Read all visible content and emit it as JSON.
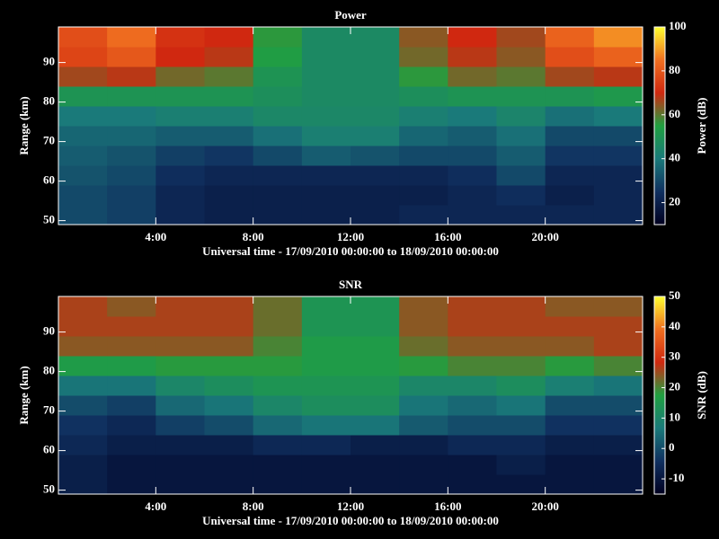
{
  "chart_data": [
    {
      "type": "heatmap",
      "title": "Power",
      "y_label": "Range (km)",
      "x_label": "Universal time - 17/09/2010 00:00:00 to 18/09/2010 00:00:00",
      "colorbar_label": "Power (dB)",
      "x_bins": [
        0,
        2,
        4,
        6,
        8,
        10,
        12,
        14,
        16,
        18,
        20,
        22,
        24
      ],
      "y_bins": [
        49,
        54,
        59,
        64,
        69,
        74,
        79,
        84,
        89,
        94,
        99
      ],
      "values": [
        [
          30,
          28,
          22,
          20,
          20,
          20,
          20,
          22,
          22,
          22,
          22,
          22
        ],
        [
          30,
          28,
          22,
          20,
          20,
          20,
          20,
          20,
          22,
          24,
          20,
          22
        ],
        [
          32,
          30,
          24,
          22,
          22,
          22,
          22,
          22,
          24,
          30,
          22,
          22
        ],
        [
          34,
          32,
          28,
          26,
          30,
          34,
          32,
          30,
          30,
          34,
          26,
          26
        ],
        [
          36,
          36,
          34,
          34,
          38,
          42,
          42,
          36,
          34,
          38,
          30,
          30
        ],
        [
          40,
          40,
          42,
          42,
          45,
          45,
          45,
          42,
          40,
          44,
          38,
          40
        ],
        [
          50,
          50,
          50,
          50,
          48,
          46,
          46,
          48,
          50,
          50,
          50,
          52
        ],
        [
          66,
          68,
          62,
          60,
          50,
          46,
          46,
          56,
          62,
          60,
          66,
          68
        ],
        [
          76,
          80,
          70,
          68,
          54,
          46,
          46,
          62,
          68,
          64,
          78,
          82
        ],
        [
          78,
          84,
          72,
          70,
          56,
          46,
          46,
          64,
          70,
          66,
          82,
          88
        ]
      ],
      "xlim": [
        0,
        24
      ],
      "ylim": [
        49,
        99
      ],
      "xticks": [
        {
          "value": 4,
          "label": "4:00"
        },
        {
          "value": 8,
          "label": "8:00"
        },
        {
          "value": 12,
          "label": "12:00"
        },
        {
          "value": 16,
          "label": "16:00"
        },
        {
          "value": 20,
          "label": "20:00"
        }
      ],
      "yticks": [
        50,
        60,
        70,
        80,
        90
      ],
      "clim": [
        10,
        100
      ],
      "cticks": [
        20,
        40,
        60,
        80,
        100
      ],
      "colors": [
        "#000020",
        "#103060",
        "#1a7a7a",
        "#20a040",
        "#d02810",
        "#f07020",
        "#ffff30"
      ]
    },
    {
      "type": "heatmap",
      "title": "SNR",
      "y_label": "Range (km)",
      "x_label": "Universal time - 17/09/2010 00:00:00 to 18/09/2010 00:00:00",
      "colorbar_label": "SNR (dB)",
      "x_bins": [
        0,
        2,
        4,
        6,
        8,
        10,
        12,
        14,
        16,
        18,
        20,
        22,
        24
      ],
      "y_bins": [
        49,
        54,
        59,
        64,
        69,
        74,
        79,
        84,
        89,
        94,
        99
      ],
      "values": [
        [
          -8,
          -10,
          -10,
          -10,
          -10,
          -10,
          -10,
          -10,
          -10,
          -10,
          -10,
          -10
        ],
        [
          -8,
          -10,
          -10,
          -10,
          -10,
          -10,
          -10,
          -10,
          -10,
          -8,
          -10,
          -10
        ],
        [
          -6,
          -8,
          -8,
          -8,
          -6,
          -6,
          -8,
          -8,
          -6,
          -6,
          -8,
          -8
        ],
        [
          -4,
          -6,
          -2,
          0,
          4,
          6,
          6,
          2,
          0,
          0,
          -4,
          -4
        ],
        [
          0,
          -2,
          4,
          6,
          10,
          12,
          12,
          6,
          4,
          6,
          0,
          0
        ],
        [
          6,
          6,
          10,
          12,
          14,
          14,
          14,
          10,
          10,
          12,
          8,
          6
        ],
        [
          16,
          16,
          18,
          18,
          18,
          16,
          16,
          18,
          20,
          20,
          18,
          20
        ],
        [
          24,
          24,
          24,
          24,
          20,
          16,
          16,
          22,
          24,
          24,
          24,
          26
        ],
        [
          26,
          26,
          26,
          26,
          22,
          14,
          14,
          24,
          26,
          26,
          26,
          26
        ],
        [
          26,
          24,
          26,
          26,
          22,
          14,
          14,
          24,
          26,
          26,
          24,
          24
        ]
      ],
      "xlim": [
        0,
        24
      ],
      "ylim": [
        49,
        99
      ],
      "xticks": [
        {
          "value": 4,
          "label": "4:00"
        },
        {
          "value": 8,
          "label": "8:00"
        },
        {
          "value": 12,
          "label": "12:00"
        },
        {
          "value": 16,
          "label": "16:00"
        },
        {
          "value": 20,
          "label": "20:00"
        }
      ],
      "yticks": [
        50,
        60,
        70,
        80,
        90
      ],
      "clim": [
        -15,
        50
      ],
      "cticks": [
        -10,
        0,
        10,
        20,
        30,
        40,
        50
      ],
      "colors": [
        "#000020",
        "#103060",
        "#1a7a7a",
        "#20a040",
        "#d02810",
        "#f07020",
        "#ffff30"
      ]
    }
  ]
}
